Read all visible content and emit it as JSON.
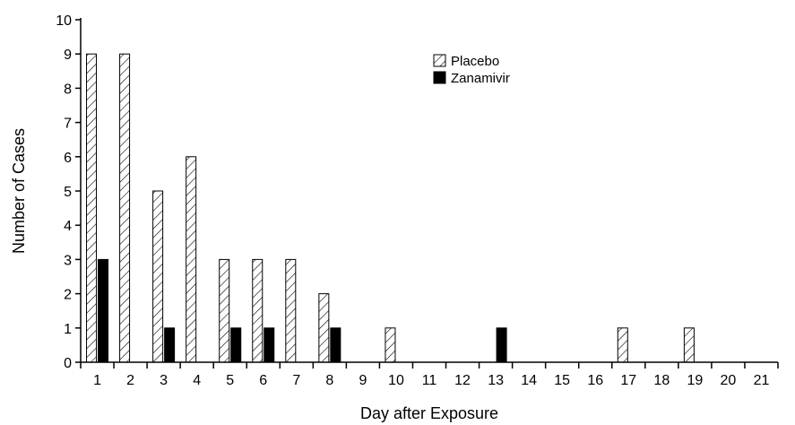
{
  "chart_data": {
    "type": "bar",
    "xlabel": "Day after Exposure",
    "ylabel": "Number of Cases",
    "ylim": [
      0,
      10
    ],
    "yticks": [
      "0",
      "1",
      "2",
      "3",
      "4",
      "5",
      "6",
      "7",
      "8",
      "9",
      "10"
    ],
    "categories": [
      "1",
      "2",
      "3",
      "4",
      "5",
      "6",
      "7",
      "8",
      "9",
      "10",
      "11",
      "12",
      "13",
      "14",
      "15",
      "16",
      "17",
      "18",
      "19",
      "20",
      "21"
    ],
    "series": [
      {
        "name": "Placebo",
        "pattern": "diagonal-hatch",
        "color": "#ffffff",
        "values": [
          9,
          9,
          5,
          6,
          3,
          3,
          3,
          2,
          0,
          1,
          0,
          0,
          0,
          0,
          0,
          0,
          1,
          0,
          1,
          0,
          0
        ]
      },
      {
        "name": "Zanamivir",
        "pattern": "solid",
        "color": "#000000",
        "values": [
          3,
          0,
          1,
          0,
          1,
          1,
          0,
          1,
          0,
          0,
          0,
          0,
          1,
          0,
          0,
          0,
          0,
          0,
          0,
          0,
          0
        ]
      }
    ],
    "legend_position": "top-center",
    "grid": false
  }
}
